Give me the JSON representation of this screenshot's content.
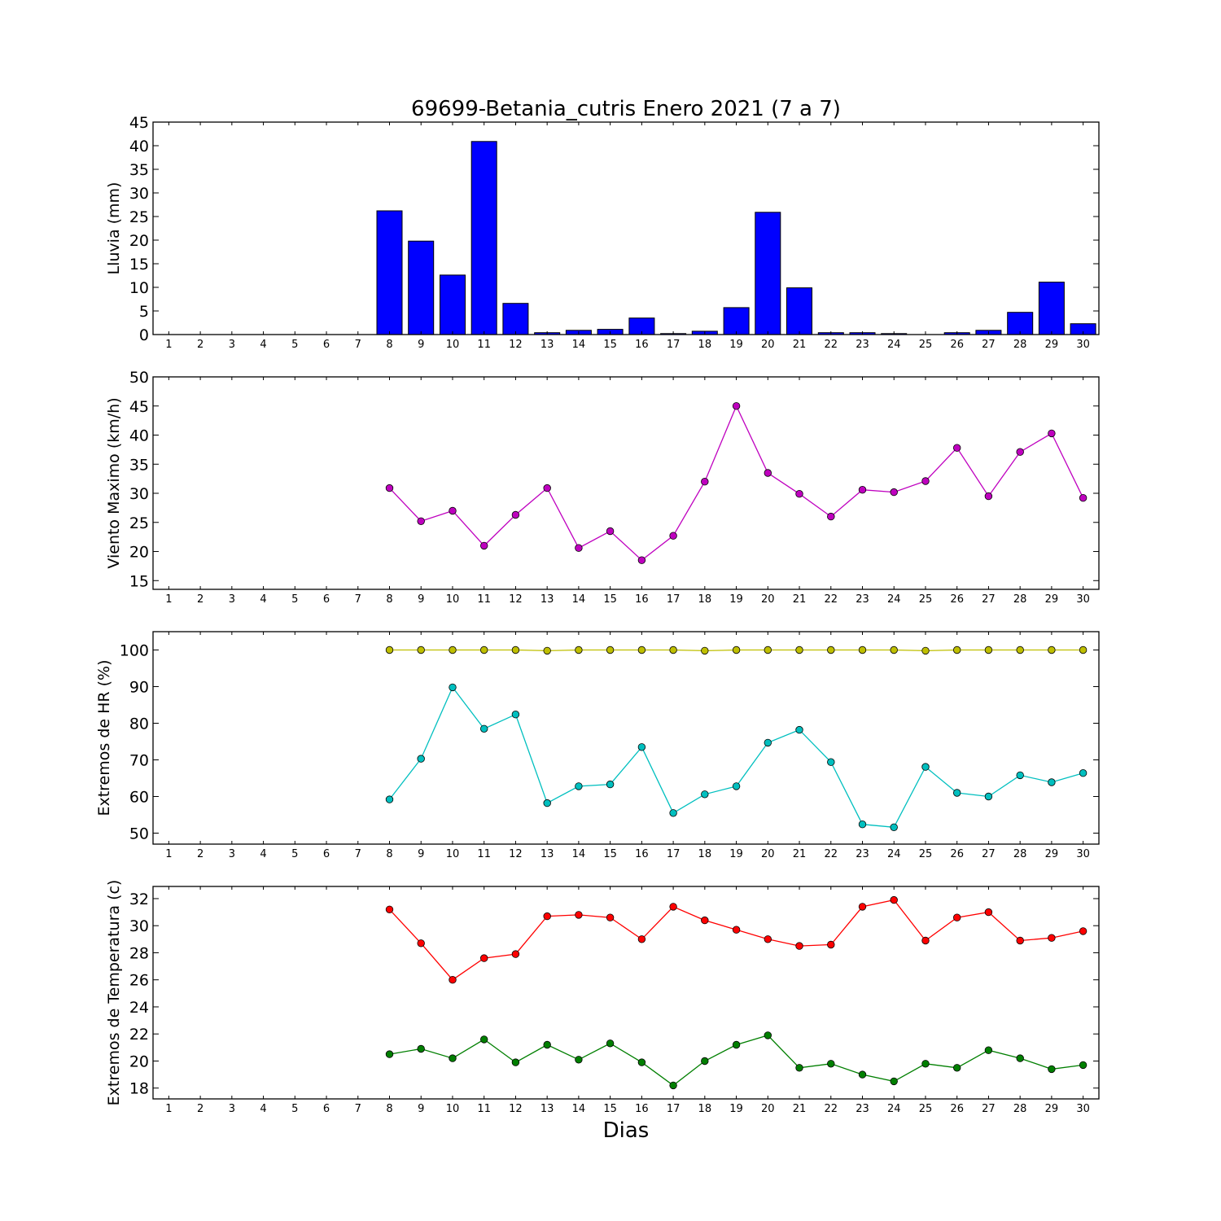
{
  "title": "69699-Betania_cutris Enero 2021  (7 a 7)",
  "xlabel": "Dias",
  "days": [
    1,
    2,
    3,
    4,
    5,
    6,
    7,
    8,
    9,
    10,
    11,
    12,
    13,
    14,
    15,
    16,
    17,
    18,
    19,
    20,
    21,
    22,
    23,
    24,
    25,
    26,
    27,
    28,
    29,
    30
  ],
  "chart_data": [
    {
      "type": "bar",
      "ylabel": "Lluvia (mm)",
      "ylim": [
        0,
        45
      ],
      "yticks": [
        0,
        5,
        10,
        15,
        20,
        25,
        30,
        35,
        40,
        45
      ],
      "categories": [
        8,
        9,
        10,
        11,
        12,
        13,
        14,
        15,
        16,
        17,
        18,
        19,
        20,
        21,
        22,
        23,
        24,
        25,
        26,
        27,
        28,
        29,
        30
      ],
      "values": [
        26.2,
        19.8,
        12.6,
        40.9,
        6.6,
        0.4,
        0.9,
        1.1,
        3.5,
        0.2,
        0.7,
        5.7,
        25.9,
        9.9,
        0.4,
        0.4,
        0.2,
        0.0,
        0.4,
        0.9,
        4.7,
        11.1,
        2.3
      ],
      "color": "#0000ff"
    },
    {
      "type": "line",
      "ylabel": "Viento Maximo (km/h)",
      "ylim": [
        13.5,
        50
      ],
      "yticks": [
        15,
        20,
        25,
        30,
        35,
        40,
        45,
        50
      ],
      "series": [
        {
          "x": [
            8,
            9,
            10,
            11,
            12,
            13,
            14,
            15,
            16,
            17,
            18,
            19,
            20,
            21,
            22,
            23,
            24,
            25,
            26,
            27,
            28,
            29,
            30
          ],
          "values": [
            30.9,
            25.2,
            27.0,
            21.0,
            26.3,
            30.9,
            20.6,
            23.5,
            18.5,
            22.7,
            32.0,
            45.0,
            33.5,
            29.9,
            26.0,
            30.6,
            30.2,
            32.1,
            37.8,
            29.5,
            37.1,
            40.3,
            29.2
          ],
          "color": "#bf00bf"
        }
      ]
    },
    {
      "type": "line",
      "ylabel": "Extremos de HR (%)",
      "ylim": [
        47,
        105
      ],
      "yticks": [
        50,
        60,
        70,
        80,
        90,
        100
      ],
      "series": [
        {
          "x": [
            8,
            9,
            10,
            11,
            12,
            13,
            14,
            15,
            16,
            17,
            18,
            19,
            20,
            21,
            22,
            23,
            24,
            25,
            26,
            27,
            28,
            29,
            30
          ],
          "values": [
            100,
            100,
            100,
            100,
            100,
            99.8,
            100,
            100,
            100,
            100,
            99.8,
            100,
            100,
            100,
            100,
            100,
            100,
            99.8,
            100,
            100,
            100,
            100,
            100
          ],
          "color": "#bfbf00"
        },
        {
          "x": [
            8,
            9,
            10,
            11,
            12,
            13,
            14,
            15,
            16,
            17,
            18,
            19,
            20,
            21,
            22,
            23,
            24,
            25,
            26,
            27,
            28,
            29,
            30
          ],
          "values": [
            59.2,
            70.3,
            89.8,
            78.5,
            82.4,
            58.2,
            62.8,
            63.3,
            73.5,
            55.5,
            60.6,
            62.8,
            74.7,
            78.2,
            69.4,
            52.4,
            51.6,
            68.1,
            61.0,
            60.0,
            65.8,
            63.9,
            66.4
          ],
          "color": "#00bfbf"
        }
      ]
    },
    {
      "type": "line",
      "ylabel": "Extremos de Temperatura (c)",
      "ylim": [
        17.2,
        32.9
      ],
      "yticks": [
        18,
        20,
        22,
        24,
        26,
        28,
        30,
        32
      ],
      "series": [
        {
          "x": [
            8,
            9,
            10,
            11,
            12,
            13,
            14,
            15,
            16,
            17,
            18,
            19,
            20,
            21,
            22,
            23,
            24,
            25,
            26,
            27,
            28,
            29,
            30
          ],
          "values": [
            31.2,
            28.7,
            26.0,
            27.6,
            27.9,
            30.7,
            30.8,
            30.6,
            29.0,
            31.4,
            30.4,
            29.7,
            29.0,
            28.5,
            28.6,
            31.4,
            31.9,
            28.9,
            30.6,
            31.0,
            28.9,
            29.1,
            29.6
          ],
          "color": "#ff0000"
        },
        {
          "x": [
            8,
            9,
            10,
            11,
            12,
            13,
            14,
            15,
            16,
            17,
            18,
            19,
            20,
            21,
            22,
            23,
            24,
            25,
            26,
            27,
            28,
            29,
            30
          ],
          "values": [
            20.5,
            20.9,
            20.2,
            21.6,
            19.9,
            21.2,
            20.1,
            21.3,
            19.9,
            18.2,
            20.0,
            21.2,
            21.9,
            19.5,
            19.8,
            19.0,
            18.5,
            19.8,
            19.5,
            20.8,
            20.2,
            19.4,
            19.7
          ],
          "color": "#007f00"
        }
      ]
    }
  ]
}
